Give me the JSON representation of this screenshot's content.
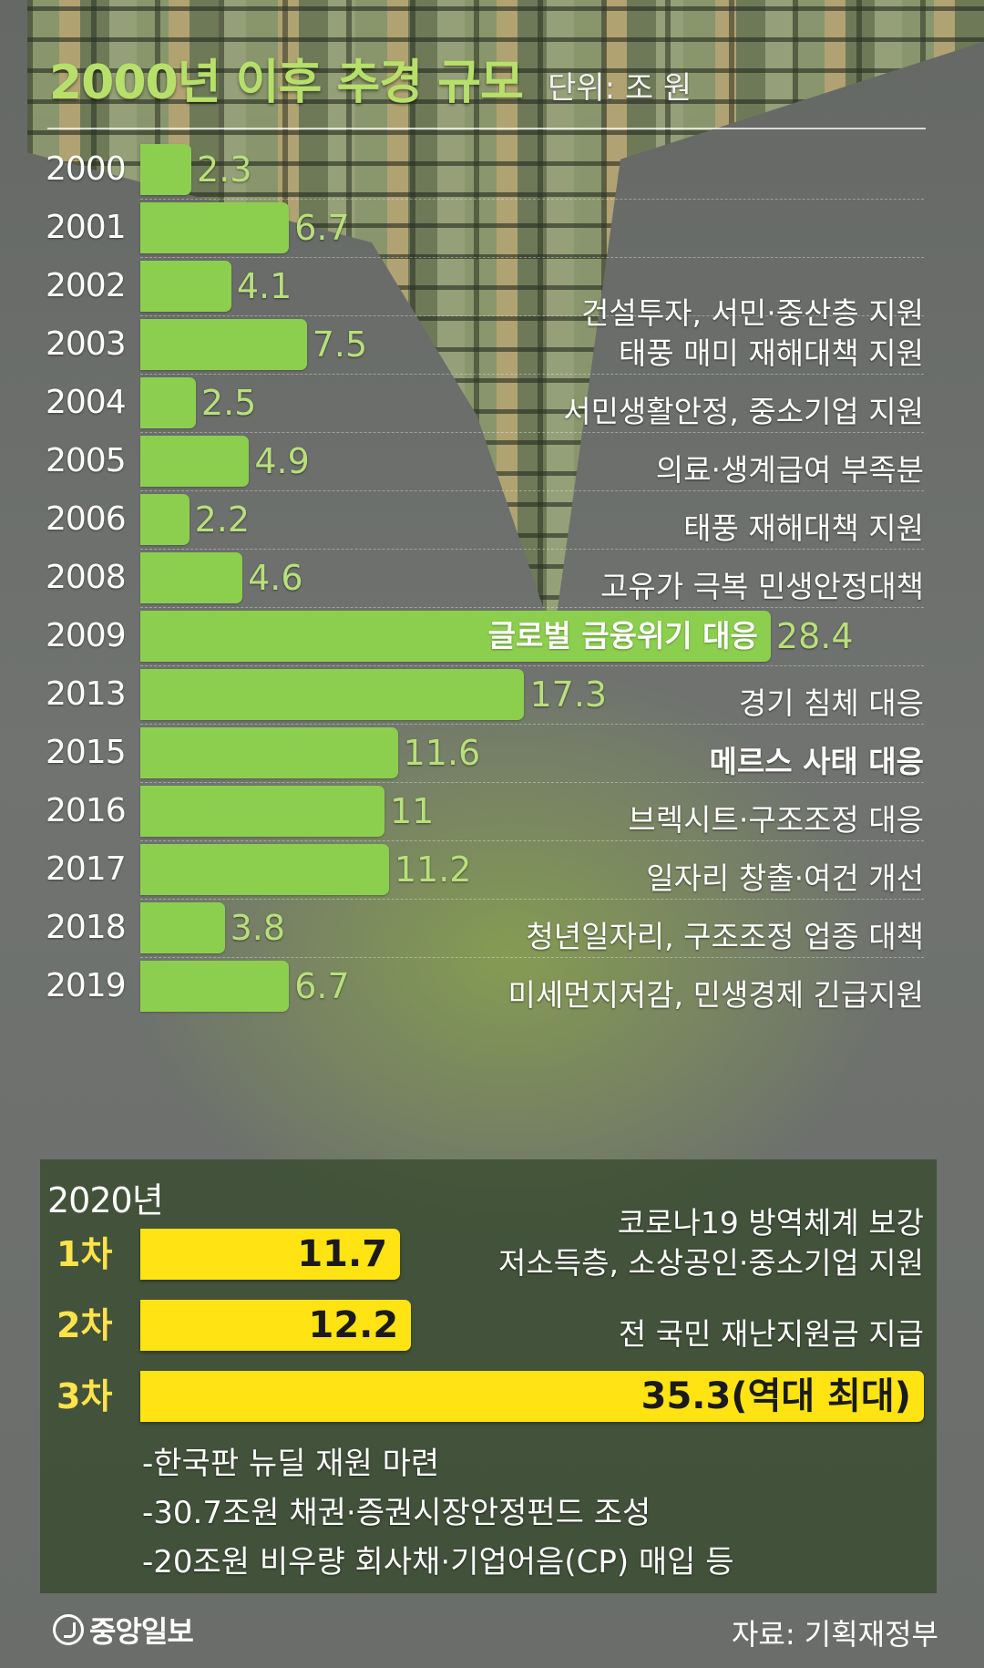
{
  "chart_data": {
    "type": "bar",
    "title": "2000년 이후 추경 규모",
    "unit": "단위: 조 원",
    "categories": [
      "2000",
      "2001",
      "2002",
      "2003",
      "2004",
      "2005",
      "2006",
      "2008",
      "2009",
      "2013",
      "2015",
      "2016",
      "2017",
      "2018",
      "2019"
    ],
    "values": [
      2.3,
      6.7,
      4.1,
      7.5,
      2.5,
      4.9,
      2.2,
      4.6,
      28.4,
      17.3,
      11.6,
      11,
      11.2,
      3.8,
      6.7
    ],
    "value_labels": [
      "2.3",
      "6.7",
      "4.1",
      "7.5",
      "2.5",
      "4.9",
      "2.2",
      "4.6",
      "28.4",
      "17.3",
      "11.6",
      "11",
      "11.2",
      "3.8",
      "6.7"
    ],
    "notes": [
      "",
      "",
      "",
      "건설투자, 서민·중산층 지원\n태풍 매미 재해대책 지원",
      "서민생활안정, 중소기업 지원",
      "의료·생계급여 부족분",
      "태풍 재해대책 지원",
      "고유가 극복 민생안정대책",
      "글로벌 금융위기 대응",
      "경기 침체 대응",
      "메르스 사태 대응",
      "브렉시트·구조조정 대응",
      "일자리 창출·여건 개선",
      "청년일자리, 구조조정 업종 대책",
      "미세먼지저감, 민생경제 긴급지원"
    ],
    "bold_notes": [
      10
    ],
    "xlim": [
      0,
      35.3
    ],
    "grid": false,
    "bar_color": "#8ccf4e",
    "highlight_color": "#ffe312",
    "year_2020": {
      "label": "2020년",
      "rounds": [
        {
          "name": "1차",
          "value": 11.7,
          "value_label": "11.7",
          "note": "코로나19 방역체계 보강\n저소득층, 소상공인·중소기업 지원"
        },
        {
          "name": "2차",
          "value": 12.2,
          "value_label": "12.2",
          "note": "전 국민 재난지원금 지급"
        },
        {
          "name": "3차",
          "value": 35.3,
          "value_label": "35.3(역대 최대)",
          "note": ""
        }
      ],
      "details": [
        "-한국판 뉴딜 재원 마련",
        "-30.7조원 채권·증권시장안정펀드 조성",
        "-20조원 비우량 회사채·기업어음(CP) 매입 등"
      ]
    }
  },
  "footer": {
    "logo": "중앙일보",
    "source": "자료: 기획재정부"
  }
}
